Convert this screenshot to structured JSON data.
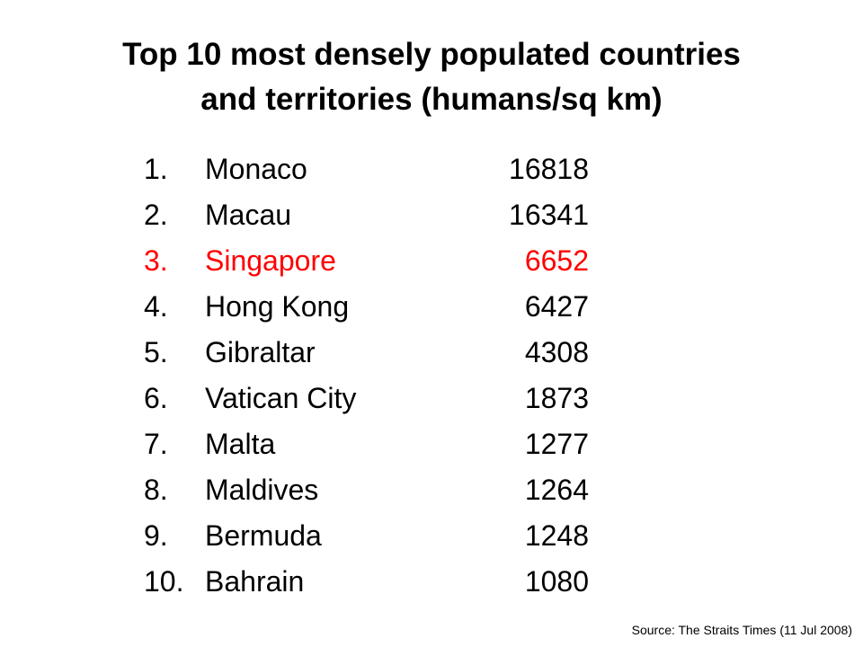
{
  "title": {
    "line1": "Top 10 most densely populated countries",
    "line2": "and territories (humans/sq km)"
  },
  "highlight_color": "#ff0000",
  "rankings": [
    {
      "rank": "1.",
      "name": "Monaco",
      "value": "16818",
      "highlighted": false
    },
    {
      "rank": "2.",
      "name": "Macau",
      "value": "16341",
      "highlighted": false
    },
    {
      "rank": "3.",
      "name": "Singapore",
      "value": "6652",
      "highlighted": true
    },
    {
      "rank": "4.",
      "name": "Hong Kong",
      "value": "6427",
      "highlighted": false
    },
    {
      "rank": "5.",
      "name": "Gibraltar",
      "value": "4308",
      "highlighted": false
    },
    {
      "rank": "6.",
      "name": "Vatican City",
      "value": "1873",
      "highlighted": false
    },
    {
      "rank": "7.",
      "name": "Malta",
      "value": "1277",
      "highlighted": false
    },
    {
      "rank": "8.",
      "name": "Maldives",
      "value": "1264",
      "highlighted": false
    },
    {
      "rank": "9.",
      "name": "Bermuda",
      "value": "1248",
      "highlighted": false
    },
    {
      "rank": "10.",
      "name": "Bahrain",
      "value": "1080",
      "highlighted": false
    }
  ],
  "source": "Source: The Straits Times (11 Jul 2008)"
}
